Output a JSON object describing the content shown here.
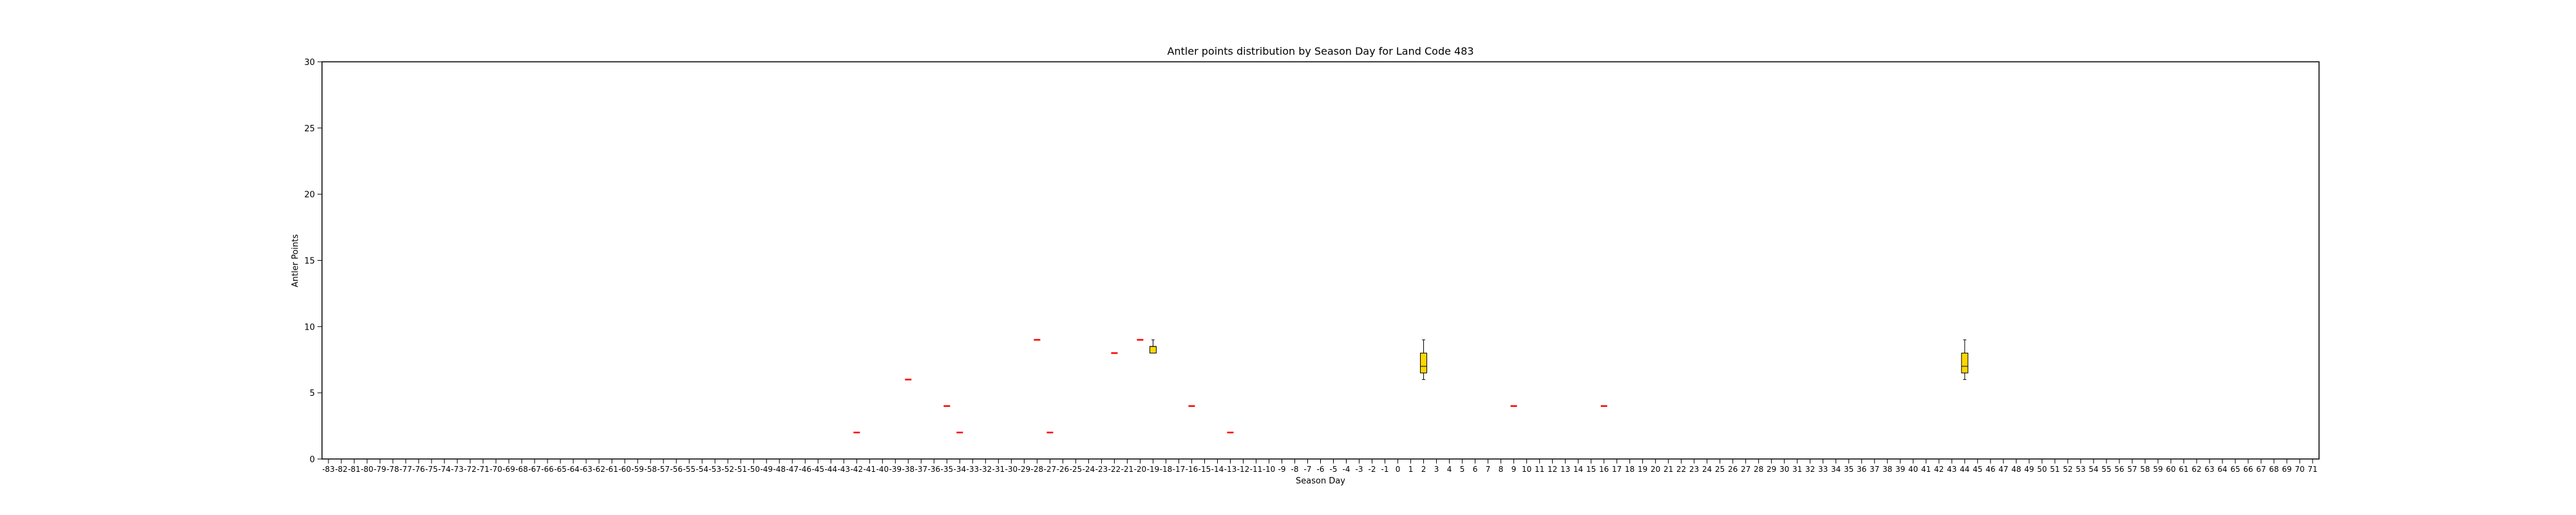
{
  "chart_data": {
    "type": "box",
    "title": "Antler points distribution by Season Day for Land Code 483",
    "xlabel": "Season Day",
    "ylabel": "Antler Points",
    "ylim": [
      0,
      30
    ],
    "yticks": [
      0,
      5,
      10,
      15,
      20,
      25,
      30
    ],
    "categories": [
      -83,
      -82,
      -81,
      -80,
      -79,
      -78,
      -77,
      -76,
      -75,
      -74,
      -73,
      -72,
      -71,
      -70,
      -69,
      -68,
      -67,
      -66,
      -65,
      -64,
      -63,
      -62,
      -61,
      -60,
      -59,
      -58,
      -57,
      -56,
      -55,
      -54,
      -53,
      -52,
      -51,
      -50,
      -49,
      -48,
      -47,
      -46,
      -45,
      -44,
      -43,
      -42,
      -41,
      -40,
      -39,
      -38,
      -37,
      -36,
      -35,
      -34,
      -33,
      -32,
      -31,
      -30,
      -29,
      -28,
      -27,
      -26,
      -25,
      -24,
      -23,
      -22,
      -21,
      -20,
      -19,
      -18,
      -17,
      -16,
      -15,
      -14,
      -13,
      -12,
      -11,
      -10,
      -9,
      -8,
      -7,
      -6,
      -5,
      -4,
      -3,
      -2,
      -1,
      0,
      1,
      2,
      3,
      4,
      5,
      6,
      7,
      8,
      9,
      10,
      11,
      12,
      13,
      14,
      15,
      16,
      17,
      18,
      19,
      20,
      21,
      22,
      23,
      24,
      25,
      26,
      27,
      28,
      29,
      30,
      31,
      32,
      33,
      34,
      35,
      36,
      37,
      38,
      39,
      40,
      41,
      42,
      43,
      44,
      45,
      46,
      47,
      48,
      49,
      50,
      51,
      52,
      53,
      54,
      55,
      56,
      57,
      58,
      59,
      60,
      61,
      62,
      63,
      64,
      65,
      66,
      67,
      68,
      69,
      70,
      71
    ],
    "boxes": [
      {
        "day": -42,
        "min": 2,
        "q1": 2,
        "median": 2,
        "q3": 2,
        "max": 2
      },
      {
        "day": -38,
        "min": 6,
        "q1": 6,
        "median": 6,
        "q3": 6,
        "max": 6
      },
      {
        "day": -35,
        "min": 4,
        "q1": 4,
        "median": 4,
        "q3": 4,
        "max": 4
      },
      {
        "day": -34,
        "min": 2,
        "q1": 2,
        "median": 2,
        "q3": 2,
        "max": 2
      },
      {
        "day": -28,
        "min": 9,
        "q1": 9,
        "median": 9,
        "q3": 9,
        "max": 9
      },
      {
        "day": -27,
        "min": 2,
        "q1": 2,
        "median": 2,
        "q3": 2,
        "max": 2
      },
      {
        "day": -22,
        "min": 8,
        "q1": 8,
        "median": 8,
        "q3": 8,
        "max": 8
      },
      {
        "day": -20,
        "min": 9,
        "q1": 9,
        "median": 9,
        "q3": 9,
        "max": 9
      },
      {
        "day": -19,
        "min": 8,
        "q1": 8,
        "median": 8.5,
        "q3": 8.5,
        "max": 9
      },
      {
        "day": -16,
        "min": 4,
        "q1": 4,
        "median": 4,
        "q3": 4,
        "max": 4
      },
      {
        "day": -13,
        "min": 2,
        "q1": 2,
        "median": 2,
        "q3": 2,
        "max": 2
      },
      {
        "day": 2,
        "min": 6,
        "q1": 6.5,
        "median": 7,
        "q3": 8,
        "max": 9
      },
      {
        "day": 9,
        "min": 4,
        "q1": 4,
        "median": 4,
        "q3": 4,
        "max": 4
      },
      {
        "day": 16,
        "min": 4,
        "q1": 4,
        "median": 4,
        "q3": 4,
        "max": 4
      },
      {
        "day": 44,
        "min": 6,
        "q1": 6.5,
        "median": 7,
        "q3": 8,
        "max": 9
      }
    ],
    "box_color": "#FFD700",
    "median_color": "#ff0000",
    "grid": false,
    "legend": "none"
  }
}
